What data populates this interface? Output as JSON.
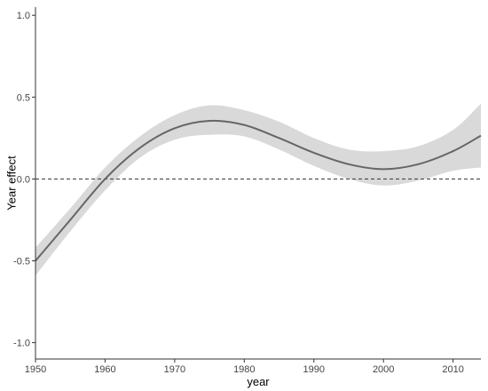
{
  "chart_data": {
    "type": "line",
    "xlabel": "year",
    "ylabel": "Year effect",
    "xlim": [
      1950,
      2014
    ],
    "ylim": [
      -1.1,
      1.05
    ],
    "x_ticks": [
      1950,
      1960,
      1970,
      1980,
      1990,
      2000,
      2010
    ],
    "y_ticks": [
      -1.0,
      -0.5,
      0.0,
      0.5,
      1.0
    ],
    "y_tick_labels": [
      "-1.0",
      "-0.5",
      "0.0",
      "0.5",
      "1.0"
    ],
    "reference_line": {
      "y": 0,
      "style": "dashed"
    },
    "grid": false,
    "series": [
      {
        "x": [
          1950,
          1955,
          1960,
          1965,
          1970,
          1975,
          1980,
          1985,
          1990,
          1995,
          2000,
          2005,
          2010,
          2014
        ],
        "y": [
          -0.5,
          -0.25,
          0.0,
          0.19,
          0.31,
          0.355,
          0.33,
          0.25,
          0.16,
          0.09,
          0.06,
          0.09,
          0.17,
          0.265
        ],
        "lower": [
          -0.59,
          -0.32,
          -0.07,
          0.13,
          0.24,
          0.27,
          0.26,
          0.18,
          0.08,
          0.0,
          -0.04,
          -0.01,
          0.05,
          0.07
        ],
        "upper": [
          -0.42,
          -0.18,
          0.07,
          0.26,
          0.39,
          0.45,
          0.42,
          0.35,
          0.25,
          0.18,
          0.17,
          0.2,
          0.3,
          0.46
        ]
      }
    ],
    "colors": {
      "line": "#666666",
      "band": "#d9d9d9",
      "axis": "#333333",
      "reference": "#333333"
    }
  }
}
